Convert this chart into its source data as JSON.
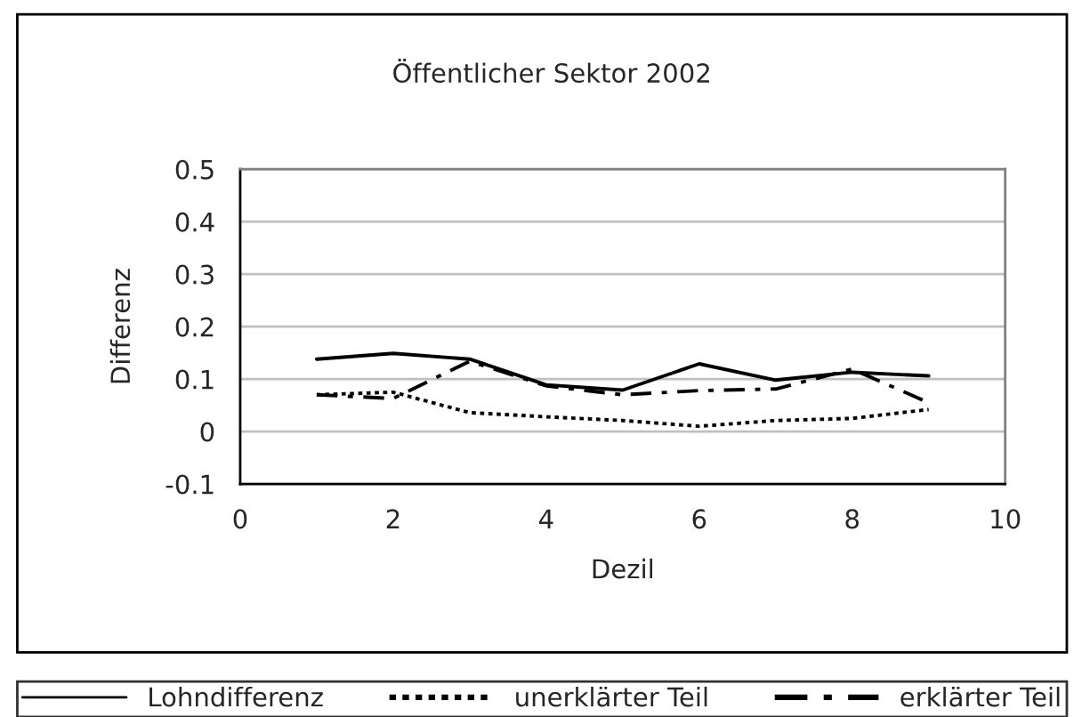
{
  "chart_data": {
    "type": "line",
    "title": "Öffentlicher Sektor 2002",
    "xlabel": "Dezil",
    "ylabel": "Differenz",
    "x": [
      1,
      2,
      3,
      4,
      5,
      6,
      7,
      8,
      9
    ],
    "series": [
      {
        "name": "Lohndifferenz",
        "color": "#000000",
        "line_style": "solid",
        "values": [
          0.138,
          0.149,
          0.138,
          0.089,
          0.079,
          0.129,
          0.098,
          0.113,
          0.106
        ]
      },
      {
        "name": "unerklärter Teil",
        "color": "#000000",
        "line_style": "dotted",
        "values": [
          0.07,
          0.075,
          0.036,
          0.028,
          0.021,
          0.01,
          0.021,
          0.025,
          0.042
        ]
      },
      {
        "name": "erklärter Teil",
        "color": "#000000",
        "line_style": "dashdot",
        "values": [
          0.07,
          0.063,
          0.134,
          0.087,
          0.07,
          0.078,
          0.081,
          0.119,
          0.055
        ]
      }
    ],
    "xlim": [
      0,
      10
    ],
    "xticks": [
      0,
      2,
      4,
      6,
      8,
      10
    ],
    "ylim": [
      -0.1,
      0.5
    ],
    "yticks": [
      -0.1,
      0,
      0.1,
      0.2,
      0.3,
      0.4,
      0.5
    ],
    "grid": "y",
    "legend": "bottom",
    "marker": "none"
  }
}
